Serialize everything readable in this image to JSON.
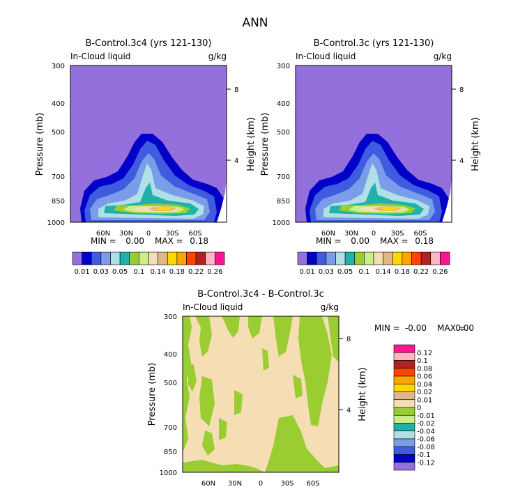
{
  "figure_title": "ANN",
  "chart_data": [
    {
      "type": "contour",
      "title": "B-Control.3c4 (yrs 121-130)",
      "variable": "In-Cloud liquid",
      "units": "g/kg",
      "ylabel": "Pressure (mb)",
      "ylabel_right": "Height (km)",
      "y_ticks": [
        "300",
        "400",
        "500",
        "700",
        "850",
        "1000"
      ],
      "y_ticks_right": [
        "8",
        "4"
      ],
      "x_ticks": [
        "60N",
        "30N",
        "0",
        "30S",
        "60S"
      ],
      "min_label": "MIN =",
      "min_value": "0.00",
      "max_label": "MAX =",
      "max_value": "0.18",
      "levels": [
        "0.01",
        "0.03",
        "0.05",
        "0.1",
        "0.14",
        "0.18",
        "0.22",
        "0.26"
      ],
      "level_colors": [
        "#9370db",
        "#0000c8",
        "#3f5ce0",
        "#7b9ce8",
        "#b0e0e6",
        "#20b2aa",
        "#9acd32",
        "#ccee88",
        "#f5deb3",
        "#deb887",
        "#ffd700",
        "#ffa500",
        "#ff4500",
        "#b22222",
        "#ffb6c1",
        "#ff1493"
      ]
    },
    {
      "type": "contour",
      "title": "B-Control.3c (yrs 121-130)",
      "variable": "In-Cloud liquid",
      "units": "g/kg",
      "ylabel": "Pressure (mb)",
      "ylabel_right": "Height (km)",
      "y_ticks": [
        "300",
        "400",
        "500",
        "700",
        "850",
        "1000"
      ],
      "y_ticks_right": [
        "8",
        "4"
      ],
      "x_ticks": [
        "60N",
        "30N",
        "0",
        "30S",
        "60S"
      ],
      "min_label": "MIN =",
      "min_value": "0.00",
      "max_label": "MAX =",
      "max_value": "0.18",
      "levels": [
        "0.01",
        "0.03",
        "0.05",
        "0.1",
        "0.14",
        "0.18",
        "0.22",
        "0.26"
      ],
      "level_colors": [
        "#9370db",
        "#0000c8",
        "#3f5ce0",
        "#7b9ce8",
        "#b0e0e6",
        "#20b2aa",
        "#9acd32",
        "#ccee88",
        "#f5deb3",
        "#deb887",
        "#ffd700",
        "#ffa500",
        "#ff4500",
        "#b22222",
        "#ffb6c1",
        "#ff1493"
      ]
    },
    {
      "type": "contour",
      "title": "B-Control.3c4 - B-Control.3c",
      "variable": "In-Cloud liquid",
      "units": "g/kg",
      "ylabel": "Pressure (mb)",
      "ylabel_right": "Height (km)",
      "y_ticks": [
        "300",
        "400",
        "500",
        "700",
        "850",
        "1000"
      ],
      "y_ticks_right": [
        "8",
        "4"
      ],
      "x_ticks": [
        "60N",
        "30N",
        "0",
        "30S",
        "60S"
      ],
      "min_label": "MIN =",
      "min_value": "-0.00",
      "max_label": "MAX =",
      "max_value": "0.00",
      "levels": [
        "0.12",
        "0.1",
        "0.08",
        "0.06",
        "0.04",
        "0.02",
        "0.01",
        "0",
        "-0.01",
        "-0.02",
        "-0.04",
        "-0.06",
        "-0.08",
        "-0.1",
        "-0.12"
      ],
      "level_colors": [
        "#ff1493",
        "#ffb6c1",
        "#b22222",
        "#ff4500",
        "#ffa500",
        "#ffd700",
        "#deb887",
        "#f5deb3",
        "#9acd32",
        "#ccee88",
        "#20b2aa",
        "#b0e0e6",
        "#7b9ce8",
        "#3f5ce0",
        "#0000c8",
        "#9370db"
      ]
    }
  ]
}
